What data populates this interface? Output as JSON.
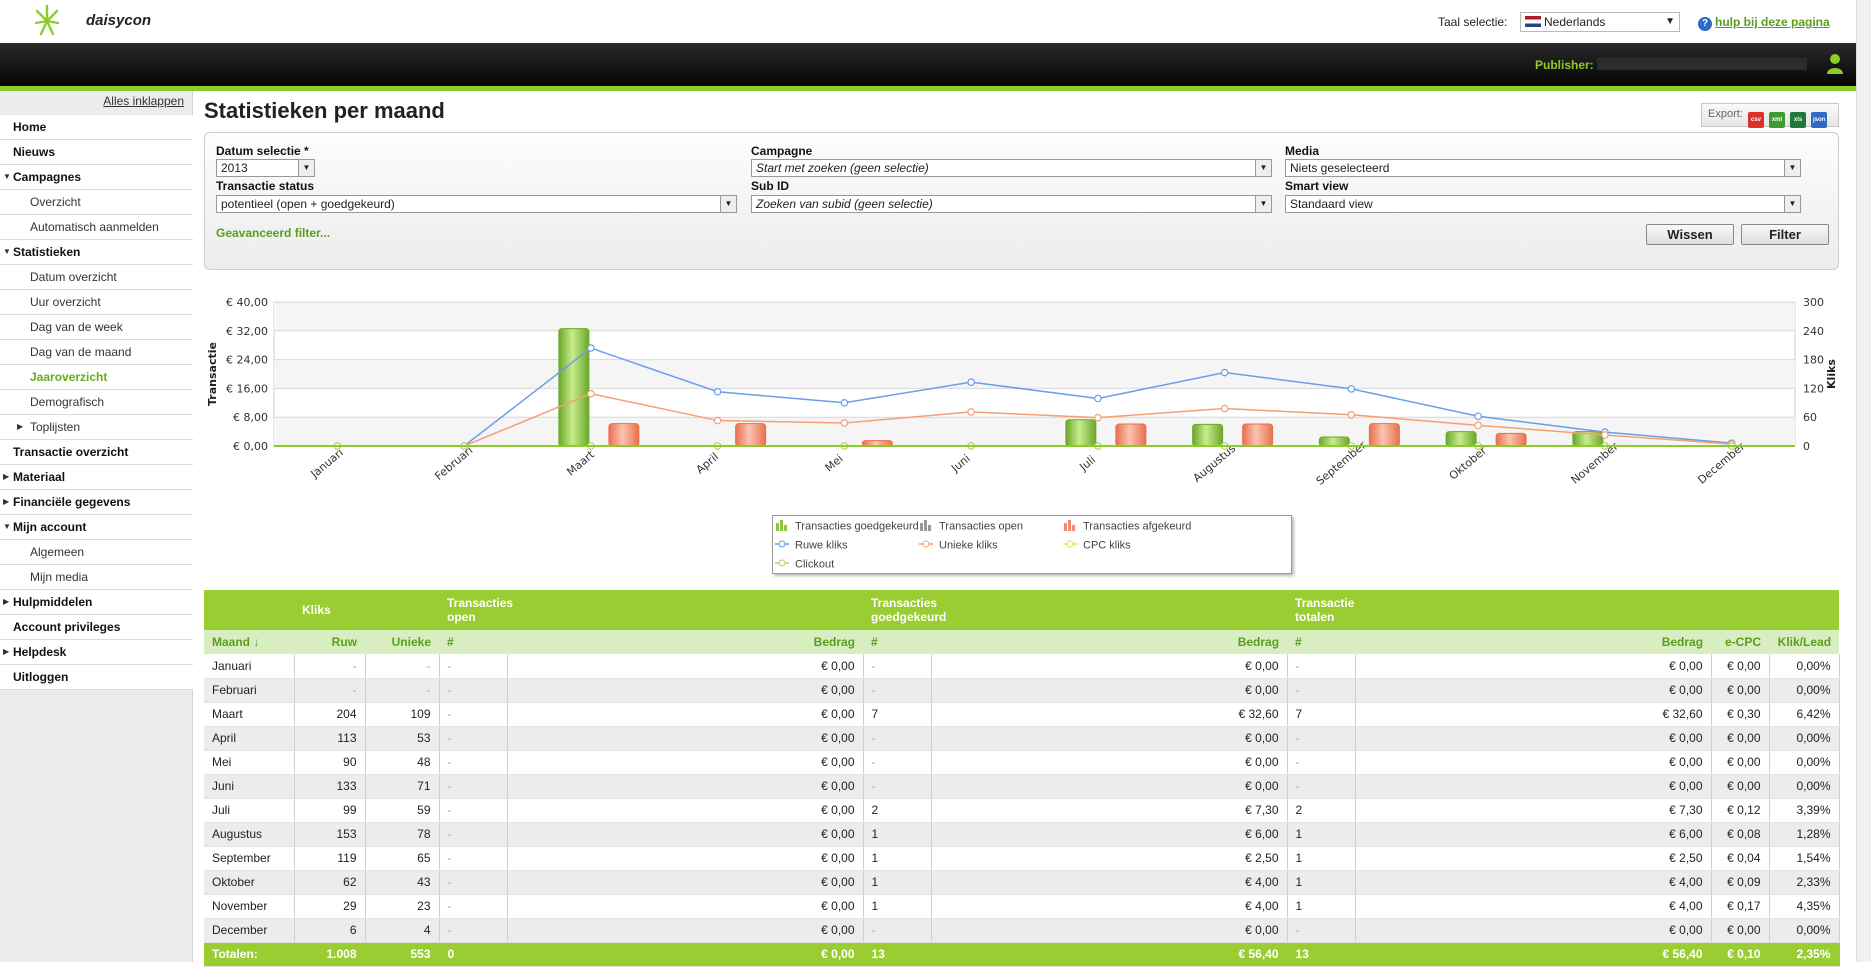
{
  "app": {
    "logo_text": "daisycon",
    "language_label": "Taal selectie:",
    "language_value": "Nederlands",
    "help_link": "hulp bij deze pagina",
    "publisher_label": "Publisher:"
  },
  "sidebar": {
    "collapse_all": "Alles inklappen",
    "items": [
      {
        "label": "Home",
        "level": "main"
      },
      {
        "label": "Nieuws",
        "level": "main"
      },
      {
        "label": "Campagnes",
        "level": "main",
        "expanded": true
      },
      {
        "label": "Overzicht",
        "level": "sub"
      },
      {
        "label": "Automatisch aanmelden",
        "level": "sub"
      },
      {
        "label": "Statistieken",
        "level": "main",
        "expanded": true
      },
      {
        "label": "Datum overzicht",
        "level": "sub"
      },
      {
        "label": "Uur overzicht",
        "level": "sub"
      },
      {
        "label": "Dag van de week",
        "level": "sub"
      },
      {
        "label": "Dag van de maand",
        "level": "sub"
      },
      {
        "label": "Jaaroverzicht",
        "level": "sub",
        "active": true
      },
      {
        "label": "Demografisch",
        "level": "sub"
      },
      {
        "label": "Toplijsten",
        "level": "sub",
        "collapsed": true
      },
      {
        "label": "Transactie overzicht",
        "level": "main"
      },
      {
        "label": "Materiaal",
        "level": "main",
        "collapsed": true
      },
      {
        "label": "Financiële gegevens",
        "level": "main",
        "collapsed": true
      },
      {
        "label": "Mijn account",
        "level": "main",
        "expanded": true
      },
      {
        "label": "Algemeen",
        "level": "sub"
      },
      {
        "label": "Mijn media",
        "level": "sub"
      },
      {
        "label": "Hulpmiddelen",
        "level": "main",
        "collapsed": true
      },
      {
        "label": "Account privileges",
        "level": "main"
      },
      {
        "label": "Helpdesk",
        "level": "main",
        "collapsed": true
      },
      {
        "label": "Uitloggen",
        "level": "main"
      }
    ]
  },
  "page": {
    "title": "Statistieken per maand",
    "export_label": "Export:",
    "export_formats": [
      "csv",
      "xml",
      "xls",
      "json"
    ]
  },
  "filters": {
    "datum_label": "Datum selectie *",
    "datum_value": "2013",
    "campagne_label": "Campagne",
    "campagne_value": "Start met zoeken (geen selectie)",
    "media_label": "Media",
    "media_value": "Niets geselecteerd",
    "status_label": "Transactie status",
    "status_value": "potentieel (open + goedgekeurd)",
    "subid_label": "Sub ID",
    "subid_value": "Zoeken van subid (geen selectie)",
    "smartview_label": "Smart view",
    "smartview_value": "Standaard view",
    "advanced": "Geavanceerd filter...",
    "clear_button": "Wissen",
    "filter_button": "Filter"
  },
  "chart_data": {
    "type": "bar",
    "categories": [
      "Januari",
      "Februari",
      "Maart",
      "April",
      "Mei",
      "Juni",
      "Juli",
      "Augustus",
      "September",
      "Oktober",
      "November",
      "December"
    ],
    "y_left_label": "Transactie",
    "y_right_label": "Kliks",
    "y_left_ticks": [
      "€ 0,00",
      "€ 8,00",
      "€ 16,00",
      "€ 24,00",
      "€ 32,00",
      "€ 40,00"
    ],
    "y_left_lim": [
      0,
      40
    ],
    "y_right_ticks": [
      "0",
      "60",
      "120",
      "180",
      "240",
      "300"
    ],
    "y_right_lim": [
      0,
      300
    ],
    "bar_series": [
      {
        "name": "Transacties goedgekeurd",
        "axis": "left",
        "color": "#8cc63f",
        "values": [
          0,
          0,
          32.6,
          0,
          0,
          0,
          7.3,
          6.0,
          2.5,
          4.0,
          4.0,
          0
        ]
      },
      {
        "name": "Transacties open",
        "axis": "left",
        "color": "#999999",
        "values": [
          0,
          0,
          0,
          0,
          0,
          0,
          0,
          0,
          0,
          0,
          0,
          0
        ]
      },
      {
        "name": "Transacties afgekeurd",
        "axis": "left",
        "color": "#f08a6a",
        "values": [
          0,
          0,
          6.2,
          6.2,
          1.5,
          0,
          6.1,
          6.1,
          6.2,
          3.5,
          0,
          0
        ]
      }
    ],
    "line_series": [
      {
        "name": "Ruwe kliks",
        "axis": "right",
        "color": "#6a9ee8",
        "values": [
          0,
          0,
          204,
          113,
          90,
          133,
          99,
          153,
          119,
          62,
          29,
          6
        ]
      },
      {
        "name": "Unieke kliks",
        "axis": "right",
        "color": "#f4a074",
        "values": [
          0,
          0,
          109,
          53,
          48,
          71,
          59,
          78,
          65,
          43,
          23,
          4
        ]
      },
      {
        "name": "CPC kliks",
        "axis": "right",
        "color": "#e8e040",
        "values": [
          0,
          0,
          0,
          0,
          0,
          0,
          0,
          0,
          0,
          0,
          0,
          0
        ]
      },
      {
        "name": "Clickout",
        "axis": "right",
        "color": "#a8d85a",
        "values": [
          0,
          0,
          0,
          0,
          0,
          0,
          0,
          0,
          0,
          0,
          0,
          0
        ]
      }
    ],
    "grid": true,
    "legend": "bottom-center"
  },
  "table": {
    "groups": [
      "Kliks",
      "Transacties\nopen",
      "Transacties\ngoedgekeurd",
      "Transactie\ntotalen"
    ],
    "headers": [
      "Maand ↓",
      "Ruw",
      "Unieke",
      "#",
      "Bedrag",
      "#",
      "Bedrag",
      "#",
      "Bedrag",
      "e-CPC",
      "Klik/Lead"
    ],
    "rows": [
      [
        "Januari",
        "-",
        "-",
        "-",
        "€ 0,00",
        "-",
        "€ 0,00",
        "-",
        "€ 0,00",
        "€ 0,00",
        "0,00%"
      ],
      [
        "Februari",
        "-",
        "-",
        "-",
        "€ 0,00",
        "-",
        "€ 0,00",
        "-",
        "€ 0,00",
        "€ 0,00",
        "0,00%"
      ],
      [
        "Maart",
        "204",
        "109",
        "-",
        "€ 0,00",
        "7",
        "€ 32,60",
        "7",
        "€ 32,60",
        "€ 0,30",
        "6,42%"
      ],
      [
        "April",
        "113",
        "53",
        "-",
        "€ 0,00",
        "-",
        "€ 0,00",
        "-",
        "€ 0,00",
        "€ 0,00",
        "0,00%"
      ],
      [
        "Mei",
        "90",
        "48",
        "-",
        "€ 0,00",
        "-",
        "€ 0,00",
        "-",
        "€ 0,00",
        "€ 0,00",
        "0,00%"
      ],
      [
        "Juni",
        "133",
        "71",
        "-",
        "€ 0,00",
        "-",
        "€ 0,00",
        "-",
        "€ 0,00",
        "€ 0,00",
        "0,00%"
      ],
      [
        "Juli",
        "99",
        "59",
        "-",
        "€ 0,00",
        "2",
        "€ 7,30",
        "2",
        "€ 7,30",
        "€ 0,12",
        "3,39%"
      ],
      [
        "Augustus",
        "153",
        "78",
        "-",
        "€ 0,00",
        "1",
        "€ 6,00",
        "1",
        "€ 6,00",
        "€ 0,08",
        "1,28%"
      ],
      [
        "September",
        "119",
        "65",
        "-",
        "€ 0,00",
        "1",
        "€ 2,50",
        "1",
        "€ 2,50",
        "€ 0,04",
        "1,54%"
      ],
      [
        "Oktober",
        "62",
        "43",
        "-",
        "€ 0,00",
        "1",
        "€ 4,00",
        "1",
        "€ 4,00",
        "€ 0,09",
        "2,33%"
      ],
      [
        "November",
        "29",
        "23",
        "-",
        "€ 0,00",
        "1",
        "€ 4,00",
        "1",
        "€ 4,00",
        "€ 0,17",
        "4,35%"
      ],
      [
        "December",
        "6",
        "4",
        "-",
        "€ 0,00",
        "-",
        "€ 0,00",
        "-",
        "€ 0,00",
        "€ 0,00",
        "0,00%"
      ]
    ],
    "totals": [
      "Totalen:",
      "1.008",
      "553",
      "0",
      "€ 0,00",
      "13",
      "€ 56,40",
      "13",
      "€ 56,40",
      "€ 0,10",
      "2,35%"
    ]
  }
}
